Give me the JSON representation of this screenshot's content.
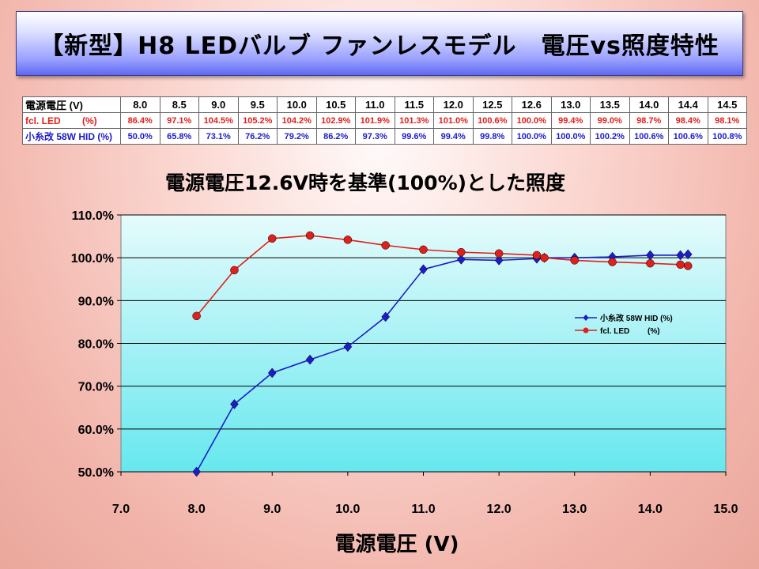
{
  "title": "【新型】H8 LEDバルブ ファンレスモデル　電圧vs照度特性",
  "table": {
    "headers": [
      "電源電圧 (V)",
      "8.0",
      "8.5",
      "9.0",
      "9.5",
      "10.0",
      "10.5",
      "11.0",
      "11.5",
      "12.0",
      "12.5",
      "12.6",
      "13.0",
      "13.5",
      "14.0",
      "14.4",
      "14.5"
    ],
    "rows": [
      {
        "label": "fcl. LED　　 (%)",
        "color": "#e0201b",
        "cells": [
          "86.4%",
          "97.1%",
          "104.5%",
          "105.2%",
          "104.2%",
          "102.9%",
          "101.9%",
          "101.3%",
          "101.0%",
          "100.6%",
          "100.0%",
          "99.4%",
          "99.0%",
          "98.7%",
          "98.4%",
          "98.1%"
        ]
      },
      {
        "label": "小糸改 58W HID (%)",
        "color": "#1c1cc8",
        "cells": [
          "50.0%",
          "65.8%",
          "73.1%",
          "76.2%",
          "79.2%",
          "86.2%",
          "97.3%",
          "99.6%",
          "99.4%",
          "99.8%",
          "100.0%",
          "100.0%",
          "100.2%",
          "100.6%",
          "100.6%",
          "100.8%"
        ]
      }
    ]
  },
  "chart_data": {
    "type": "line",
    "title": "電源電圧12.6V時を基準(100%)とした照度",
    "xlabel": "電源電圧 (V)",
    "ylabel": "",
    "xlim": [
      7.0,
      15.0
    ],
    "ylim": [
      50.0,
      110.0
    ],
    "x_ticks": [
      "7.0",
      "8.0",
      "9.0",
      "10.0",
      "11.0",
      "12.0",
      "13.0",
      "14.0",
      "15.0"
    ],
    "y_ticks": [
      "50.0%",
      "60.0%",
      "70.0%",
      "80.0%",
      "90.0%",
      "100.0%",
      "110.0%"
    ],
    "x": [
      8.0,
      8.5,
      9.0,
      9.5,
      10.0,
      10.5,
      11.0,
      11.5,
      12.0,
      12.5,
      12.6,
      13.0,
      13.5,
      14.0,
      14.4,
      14.5
    ],
    "series": [
      {
        "name": "小糸改 58W HID (%)",
        "color": "#1c1cc8",
        "marker": "diamond",
        "values": [
          50.0,
          65.8,
          73.1,
          76.2,
          79.2,
          86.2,
          97.3,
          99.6,
          99.4,
          99.8,
          100.0,
          100.0,
          100.2,
          100.6,
          100.6,
          100.8
        ]
      },
      {
        "name": "fcl. LED　　 (%)",
        "color": "#e0201b",
        "marker": "circle",
        "values": [
          86.4,
          97.1,
          104.5,
          105.2,
          104.2,
          102.9,
          101.9,
          101.3,
          101.0,
          100.6,
          100.0,
          99.4,
          99.0,
          98.7,
          98.4,
          98.1
        ]
      }
    ],
    "grid": true,
    "legend": "right"
  }
}
